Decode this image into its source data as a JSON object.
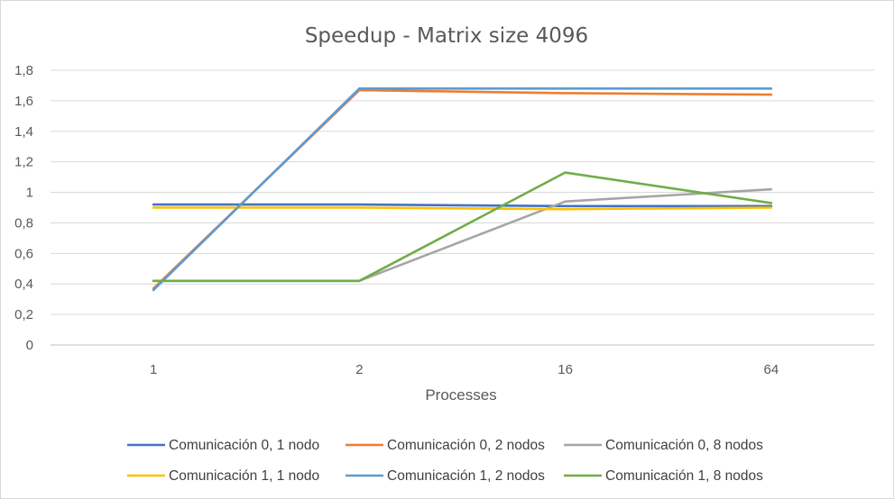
{
  "chart_data": {
    "type": "line",
    "title": "Speedup - Matrix size 4096",
    "xlabel": "Processes",
    "ylabel": "",
    "categories": [
      "1",
      "2",
      "16",
      "64"
    ],
    "y_ticks": [
      "0",
      "0,2",
      "0,4",
      "0,6",
      "0,8",
      "1",
      "1,2",
      "1,4",
      "1,6",
      "1,8"
    ],
    "ylim": [
      0,
      1.8
    ],
    "grid": "horizontal",
    "legend_position": "bottom",
    "series": [
      {
        "name": "Comunicación 0, 1 nodo",
        "color": "#4472c4",
        "values": [
          0.92,
          0.92,
          0.91,
          0.91
        ]
      },
      {
        "name": "Comunicación 0, 2 nodos",
        "color": "#ed7d31",
        "values": [
          0.37,
          1.67,
          1.65,
          1.64
        ]
      },
      {
        "name": "Comunicación 0, 8 nodos",
        "color": "#a5a5a5",
        "values": [
          0.42,
          0.42,
          0.94,
          1.02
        ]
      },
      {
        "name": "Comunicación 1, 1 nodo",
        "color": "#ffc000",
        "values": [
          0.9,
          0.9,
          0.89,
          0.9
        ]
      },
      {
        "name": "Comunicación 1, 2 nodos",
        "color": "#5b9bd5",
        "values": [
          0.36,
          1.68,
          1.68,
          1.68
        ]
      },
      {
        "name": "Comunicación 1, 8 nodos",
        "color": "#70ad47",
        "values": [
          0.42,
          0.42,
          1.13,
          0.93
        ]
      }
    ]
  }
}
